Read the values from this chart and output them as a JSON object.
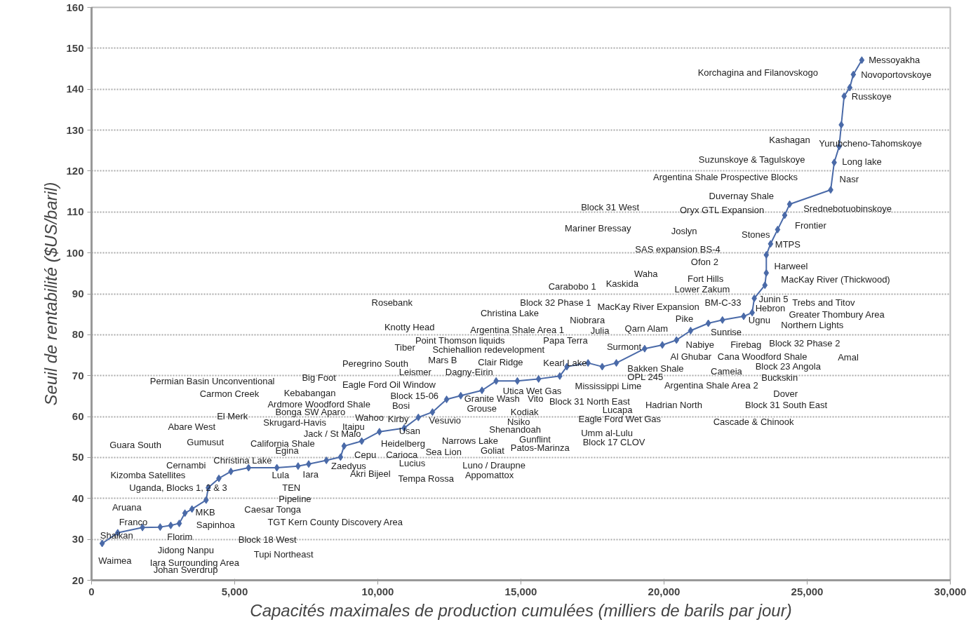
{
  "chart_data": {
    "type": "line",
    "xlabel": "Capacités maximales de production cumulées (milliers de barils par jour)",
    "ylabel": "Seuil de rentabilité ($US/baril)",
    "xlim": [
      0,
      30000
    ],
    "ylim": [
      20,
      160
    ],
    "xticks": [
      0,
      {
        "value": 5000,
        "label": "5,000"
      },
      {
        "value": 10000,
        "label": "10,000"
      },
      {
        "value": 15000,
        "label": "15,000"
      },
      {
        "value": 20000,
        "label": "20,000"
      },
      {
        "value": 25000,
        "label": "25,000"
      },
      {
        "value": 30000,
        "label": "30,000"
      }
    ],
    "yticks": [
      20,
      30,
      40,
      50,
      60,
      70,
      80,
      90,
      100,
      110,
      120,
      130,
      140,
      150,
      160
    ],
    "grid": "y",
    "marker": "diamond",
    "line_style": "solid",
    "series": [
      {
        "color": "#4a6aa8",
        "x": [
          370,
          914,
          1779,
          2397,
          2767,
          3064,
          3262,
          3509,
          4003,
          4077,
          4448,
          4868,
          5486,
          6474,
          7215,
          7586,
          8204,
          8698,
          8822,
          9439,
          10057,
          10922,
          11416,
          11910,
          12404,
          12899,
          13640,
          14134,
          14876,
          15617,
          16358,
          16605,
          17346,
          17840,
          18334,
          19323,
          19941,
          20435,
          20929,
          21547,
          22041,
          22782,
          23079,
          23153,
          23524,
          23573,
          23573,
          23721,
          23968,
          24215,
          24388,
          25822,
          25945,
          26118,
          26192,
          26291,
          26489,
          26613,
          26909
        ],
        "values": [
          29.0,
          31.6,
          32.9,
          33.0,
          33.4,
          33.9,
          36.4,
          37.4,
          39.6,
          42.6,
          44.9,
          46.6,
          47.5,
          47.5,
          47.9,
          48.4,
          49.3,
          50.1,
          52.8,
          54.0,
          56.3,
          57.2,
          59.8,
          61.1,
          64.2,
          65.1,
          66.4,
          68.7,
          68.7,
          69.2,
          69.9,
          72.2,
          73.1,
          72.2,
          73.1,
          76.6,
          77.5,
          78.7,
          81.0,
          82.8,
          83.6,
          84.5,
          85.4,
          88.9,
          92.1,
          95.1,
          99.5,
          102.2,
          105.7,
          109.2,
          111.9,
          115.4,
          122.1,
          126.0,
          131.3,
          138.3,
          140.4,
          143.6,
          147.1
        ]
      }
    ],
    "annotations": [
      "Waimea",
      "Shaikan",
      "Franco",
      "Aruana",
      "Florim",
      "Jidong Nanpu",
      "Iara Surrounding Area",
      "Johan Sverdrup",
      "MKB",
      "Sapinhoa",
      "Uganda, Blocks 1, 2 & 3",
      "Kizomba Satellites",
      "Cernambi",
      "Christina Lake",
      "Guara South",
      "Gumusut",
      "Abare West",
      "El Merk",
      "California Shale",
      "Egina",
      "Lula",
      "Iara",
      "TEN",
      "Pipeline",
      "Caesar Tonga",
      "TGT Kern County Discovery Area",
      "Block 18 West",
      "Tupi Northeast",
      "Permian Basin Unconventional",
      "Carmon Creek",
      "Big Foot",
      "Kebabangan",
      "Ardmore Woodford Shale",
      "Bonga SW Aparo",
      "Skrugard-Havis",
      "Itaipu",
      "Jack / St Malo",
      "Wahoo",
      "Kirby",
      "Bosi",
      "Usan",
      "Cepu",
      "Carioca",
      "Zaedyus",
      "Akri Bijeel",
      "Heidelberg",
      "Lucius",
      "Tempa Rossa",
      "Sea Lion",
      "Rosebank",
      "Christina Lake",
      "Knotty Head",
      "Tiber",
      "Point Thomson liquids",
      "Schiehallion redevelopment",
      "Peregrino South",
      "Mars B",
      "Clair Ridge",
      "Leismer",
      "Dagny-Eirin",
      "Eagle Ford Oil Window",
      "Block 15-06",
      "Granite Wash",
      "Vito",
      "Grouse",
      "Vesuvio",
      "Utica Wet Gas",
      "Kodiak",
      "Nsiko",
      "Shenandoah",
      "Gunflint",
      "Narrows Lake",
      "Goliat",
      "Patos-Marinza",
      "Luno / Draupne",
      "Appomattox",
      "Argentina Shale Area 1",
      "Papa Terra",
      "Kearl Lake",
      "Block 32 Phase 1",
      "Carabobo 1",
      "Kaskida",
      "Waha",
      "MacKay River Expansion",
      "Niobrara",
      "Julia",
      "Qarn Alam",
      "Surmont",
      "Mississippi Lime",
      "Block 31 North East",
      "Lucapa",
      "Hadrian North",
      "Eagle Ford Wet Gas",
      "Umm al-Lulu",
      "Block 17 CLOV",
      "Bakken Shale",
      "OPL 245",
      "Argentina Shale Area 2",
      "Al Ghubar",
      "Nabiye",
      "Firebag",
      "Cana Woodford Shale",
      "Cameia",
      "Block 32 Phase 2",
      "Amal",
      "Block 23 Angola",
      "Buckskin",
      "Dover",
      "Block 31 South East",
      "Cascade & Chinook",
      "Sunrise",
      "Pike",
      "BM-C-33",
      "Lower Zakum",
      "Fort Hills",
      "Ofon 2",
      "SAS expansion BS-4",
      "Joslyn",
      "Mariner Bressay",
      "Block 31 West",
      "Oryx GTL Expansion",
      "Stones",
      "Harweel",
      "MacKay River (Thickwood)",
      "MTPS",
      "Frontier",
      "Srednebotuobinskoye",
      "Duvernay Shale",
      "Junin 5",
      "Hebron",
      "Ugnu",
      "Trebs and Titov",
      "Greater Thombury Area",
      "Northern Lights",
      "Argentina Shale Prospective Blocks",
      "Nasr",
      "Suzunskoye & Tagulskoye",
      "Long lake",
      "Kashagan",
      "Yurubcheno-Tahomskoye",
      "Russkoye",
      "Korchagina and Filanovskogo",
      "Novoportovskoye",
      "Messoyakha"
    ]
  }
}
